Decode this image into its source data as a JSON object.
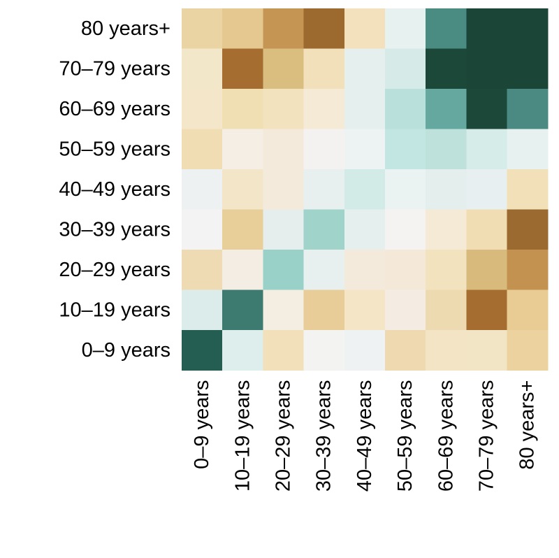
{
  "chart_data": {
    "type": "heatmap",
    "title": "",
    "xlabel": "",
    "ylabel": "",
    "grid": false,
    "legend": "none",
    "palette": "brown-to-teal diverging",
    "x_categories": [
      "0–9 years",
      "10–19 years",
      "20–29 years",
      "30–39 years",
      "40–49 years",
      "50–59 years",
      "60–69 years",
      "70–79 years",
      "80 years+"
    ],
    "y_categories": [
      "80 years+",
      "70–79 years",
      "60–69 years",
      "50–59 years",
      "40–49 years",
      "30–39 years",
      "20–29 years",
      "10–19 years",
      "0–9 years"
    ],
    "cell_colors": [
      [
        "#ebd4a3",
        "#e4c890",
        "#c49553",
        "#9c692e",
        "#f2e1bc",
        "#e7f1ef",
        "#4a8c82",
        "#1b4537",
        "#1b4537"
      ],
      [
        "#f3e7c9",
        "#a56d2f",
        "#d9be80",
        "#f1e0b9",
        "#e5efee",
        "#d6ebe8",
        "#1c4839",
        "#1b4537",
        "#1b4537"
      ],
      [
        "#f4e6c9",
        "#f0dfb3",
        "#f2e2be",
        "#f4ead6",
        "#e5efee",
        "#b9e0da",
        "#65a89f",
        "#1c4839",
        "#4b8a82"
      ],
      [
        "#f0ddb4",
        "#f5eee4",
        "#f4eadb",
        "#f4f2f0",
        "#edf2f2",
        "#c2e6e1",
        "#bfe1dc",
        "#d6ece9",
        "#e7f1ef"
      ],
      [
        "#eef1f1",
        "#f3e6c8",
        "#f3eadb",
        "#e7f0ef",
        "#d3ebe7",
        "#ebf2f2",
        "#e3eeed",
        "#e7eff0",
        "#f1e0b8"
      ],
      [
        "#f3f3f3",
        "#e8cf99",
        "#e5eeec",
        "#a0d3ca",
        "#e5efee",
        "#f4f3f1",
        "#f4ead6",
        "#f0ddb4",
        "#9a6a30"
      ],
      [
        "#efdbb3",
        "#f3ede3",
        "#99d1c8",
        "#e7f0ee",
        "#f4eadc",
        "#f4e9d8",
        "#f2e2be",
        "#d8bb7c",
        "#c49250"
      ],
      [
        "#dcecea",
        "#3d7b71",
        "#f3ede2",
        "#e8cd98",
        "#f3e5c6",
        "#f4ece2",
        "#eedab0",
        "#a56d2f",
        "#e8cc94"
      ],
      [
        "#245e52",
        "#deeeec",
        "#f1e0b9",
        "#f3f3f2",
        "#eef2f2",
        "#efd9b0",
        "#f2e4c5",
        "#f2e5c5",
        "#ebd29e"
      ]
    ]
  }
}
